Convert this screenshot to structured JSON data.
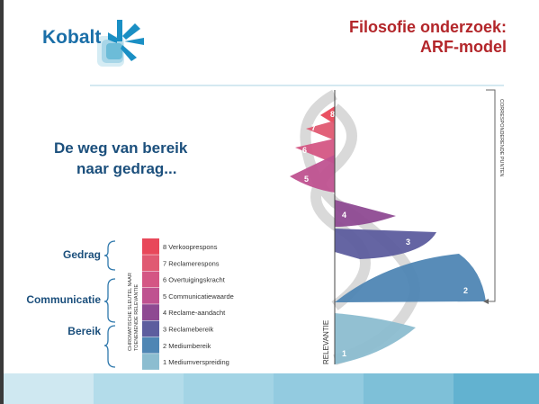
{
  "logo": "Kobalt",
  "header": {
    "title_line1": "Filosofie onderzoek:",
    "title_line2": "ARF-model"
  },
  "subtitle": {
    "line1": "De weg van bereik",
    "line2": "naar gedrag..."
  },
  "groups": [
    "Gedrag",
    "Communicatie",
    "Bereik"
  ],
  "key_caption": [
    "CHROMATISCHE SLEUTEL NAAR",
    "TOENEMENDE RELEVANTIE"
  ],
  "key": [
    {
      "label": "8 Verkooprespons",
      "color": "#e8485a"
    },
    {
      "label": "7 Reclamerespons",
      "color": "#e05a72"
    },
    {
      "label": "6 Overtuigingskracht",
      "color": "#d45684"
    },
    {
      "label": "5 Communicatiewaarde",
      "color": "#bf5290"
    },
    {
      "label": "4 Reclame-aandacht",
      "color": "#8e4a92"
    },
    {
      "label": "3 Reclamebereik",
      "color": "#5d5d9e"
    },
    {
      "label": "2 Mediumbereik",
      "color": "#4f86b4"
    },
    {
      "label": "1 Mediumverspreiding",
      "color": "#8cbdd0"
    }
  ],
  "diagram": {
    "axis_label": "RELEVANTIE",
    "side_label": "CORRESPONDERENDE PUNTEN",
    "wedge_labels": [
      "8",
      "7",
      "6",
      "5",
      "4",
      "3",
      "2",
      "1"
    ]
  }
}
